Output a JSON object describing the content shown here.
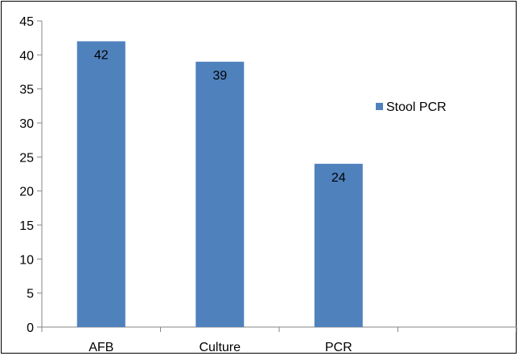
{
  "chart_data": {
    "type": "bar",
    "title": "",
    "xlabel": "",
    "ylabel": "",
    "categories": [
      "AFB",
      "Culture",
      "PCR",
      ""
    ],
    "series": [
      {
        "name": "Stool PCR",
        "values": [
          42,
          39,
          24,
          null
        ],
        "color": "#4F81BD"
      }
    ],
    "ylim": [
      0,
      45
    ],
    "yticks": [
      0,
      5,
      10,
      15,
      20,
      25,
      30,
      35,
      40,
      45
    ],
    "grid": false,
    "legend": "right",
    "data_labels": true
  }
}
